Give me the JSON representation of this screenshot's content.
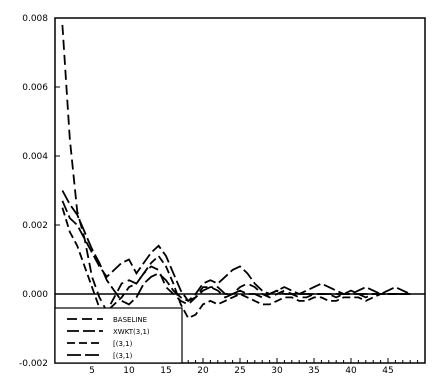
{
  "chart_data": {
    "type": "line",
    "title": "",
    "xlabel": "",
    "ylabel": "",
    "xlim": [
      0,
      50
    ],
    "ylim": [
      -0.002,
      0.008
    ],
    "grid": false,
    "legend_position": "bottom-left",
    "x_ticks": [
      5,
      10,
      15,
      20,
      25,
      30,
      35,
      40,
      45
    ],
    "y_ticks": [
      -0.002,
      0.0,
      0.002,
      0.004,
      0.006,
      0.008
    ],
    "x_tick_labels": [
      "5",
      "10",
      "15",
      "20",
      "25",
      "30",
      "35",
      "40",
      "45"
    ],
    "y_tick_labels": [
      "-0.002",
      "0.000",
      "0.002",
      "0.004",
      "0.006",
      "0.008"
    ],
    "reference_line": 0.0,
    "colors": {
      "series": "#000000",
      "axis": "#000000",
      "background": "#ffffff"
    },
    "x": [
      1,
      2,
      3,
      4,
      5,
      6,
      7,
      8,
      9,
      10,
      11,
      12,
      13,
      14,
      15,
      16,
      17,
      18,
      19,
      20,
      21,
      22,
      23,
      24,
      25,
      26,
      27,
      28,
      29,
      30,
      31,
      32,
      33,
      34,
      35,
      36,
      37,
      38,
      39,
      40,
      41,
      42,
      43,
      44,
      45,
      46,
      47,
      48
    ],
    "series": [
      {
        "name": "BASELINE",
        "dash": "10,5",
        "values": [
          0.0078,
          0.0045,
          0.0024,
          0.0016,
          0.0005,
          -0.0001,
          -0.0005,
          -0.0001,
          0.0003,
          0.0004,
          0.0003,
          0.0006,
          0.0008,
          0.0007,
          0.0002,
          0.0,
          -0.0002,
          -0.0003,
          -0.0001,
          0.0002,
          0.0002,
          0.0001,
          -0.0001,
          0.0,
          0.0002,
          0.0003,
          0.0002,
          0.0,
          -0.0001,
          0.0,
          0.0001,
          0.0,
          -0.0001,
          -0.0001,
          0.0,
          0.0,
          0.0,
          -0.0001,
          0.0,
          0.0001,
          0.0,
          -0.0001,
          0.0,
          0.0,
          0.0,
          0.0,
          0.0,
          0.0
        ]
      },
      {
        "name": "XWKT(3,1)",
        "dash": "12,4",
        "values": [
          0.0027,
          0.0022,
          0.002,
          0.0016,
          0.0012,
          0.0008,
          0.0005,
          0.0007,
          0.0009,
          0.001,
          0.0006,
          0.0009,
          0.0012,
          0.0014,
          0.0011,
          0.0006,
          0.0001,
          -0.0002,
          0.0,
          0.0003,
          0.0004,
          0.0003,
          0.0005,
          0.0007,
          0.0008,
          0.0006,
          0.0003,
          0.0001,
          0.0,
          0.0001,
          0.0002,
          0.0001,
          0.0,
          0.0001,
          0.0002,
          0.0003,
          0.0002,
          0.0001,
          0.0,
          0.0,
          0.0001,
          0.0002,
          0.0001,
          0.0,
          0.0001,
          0.0002,
          0.0001,
          0.0
        ]
      },
      {
        "name": "[(3,1)",
        "dash": "8,4",
        "values": [
          0.0025,
          0.0018,
          0.0014,
          0.0008,
          0.0002,
          -0.0004,
          -0.0005,
          -0.0003,
          -0.0001,
          0.0002,
          0.0003,
          0.0006,
          0.0009,
          0.0011,
          0.0008,
          0.0003,
          -0.0003,
          -0.0007,
          -0.0006,
          -0.0003,
          -0.0002,
          -0.0003,
          -0.0002,
          -0.0001,
          0.0,
          -0.0001,
          -0.0002,
          -0.0003,
          -0.0003,
          -0.0002,
          -0.0001,
          -0.0001,
          -0.0002,
          -0.0002,
          -0.0001,
          -0.0001,
          -0.0002,
          -0.0002,
          -0.0001,
          -0.0001,
          -0.0001,
          -0.0002,
          -0.0001,
          0.0,
          0.0,
          0.0,
          0.0,
          0.0
        ]
      },
      {
        "name": "[(3,1)",
        "dash": "14,4",
        "values": [
          0.003,
          0.0026,
          0.0023,
          0.0018,
          0.0013,
          0.0009,
          0.0004,
          0.0001,
          -0.0002,
          -0.0003,
          -0.0001,
          0.0003,
          0.0005,
          0.0006,
          0.0004,
          0.0001,
          -0.0001,
          -0.0002,
          -0.0001,
          0.0001,
          0.0002,
          0.0002,
          0.0,
          0.0,
          0.0001,
          0.0,
          0.0,
          -0.0001,
          0.0,
          0.0001,
          0.0,
          0.0,
          0.0,
          0.0,
          0.0,
          0.0,
          0.0,
          0.0,
          0.0,
          0.0,
          0.0,
          0.0,
          0.0,
          0.0,
          0.0,
          0.0,
          0.0,
          0.0
        ]
      }
    ]
  }
}
